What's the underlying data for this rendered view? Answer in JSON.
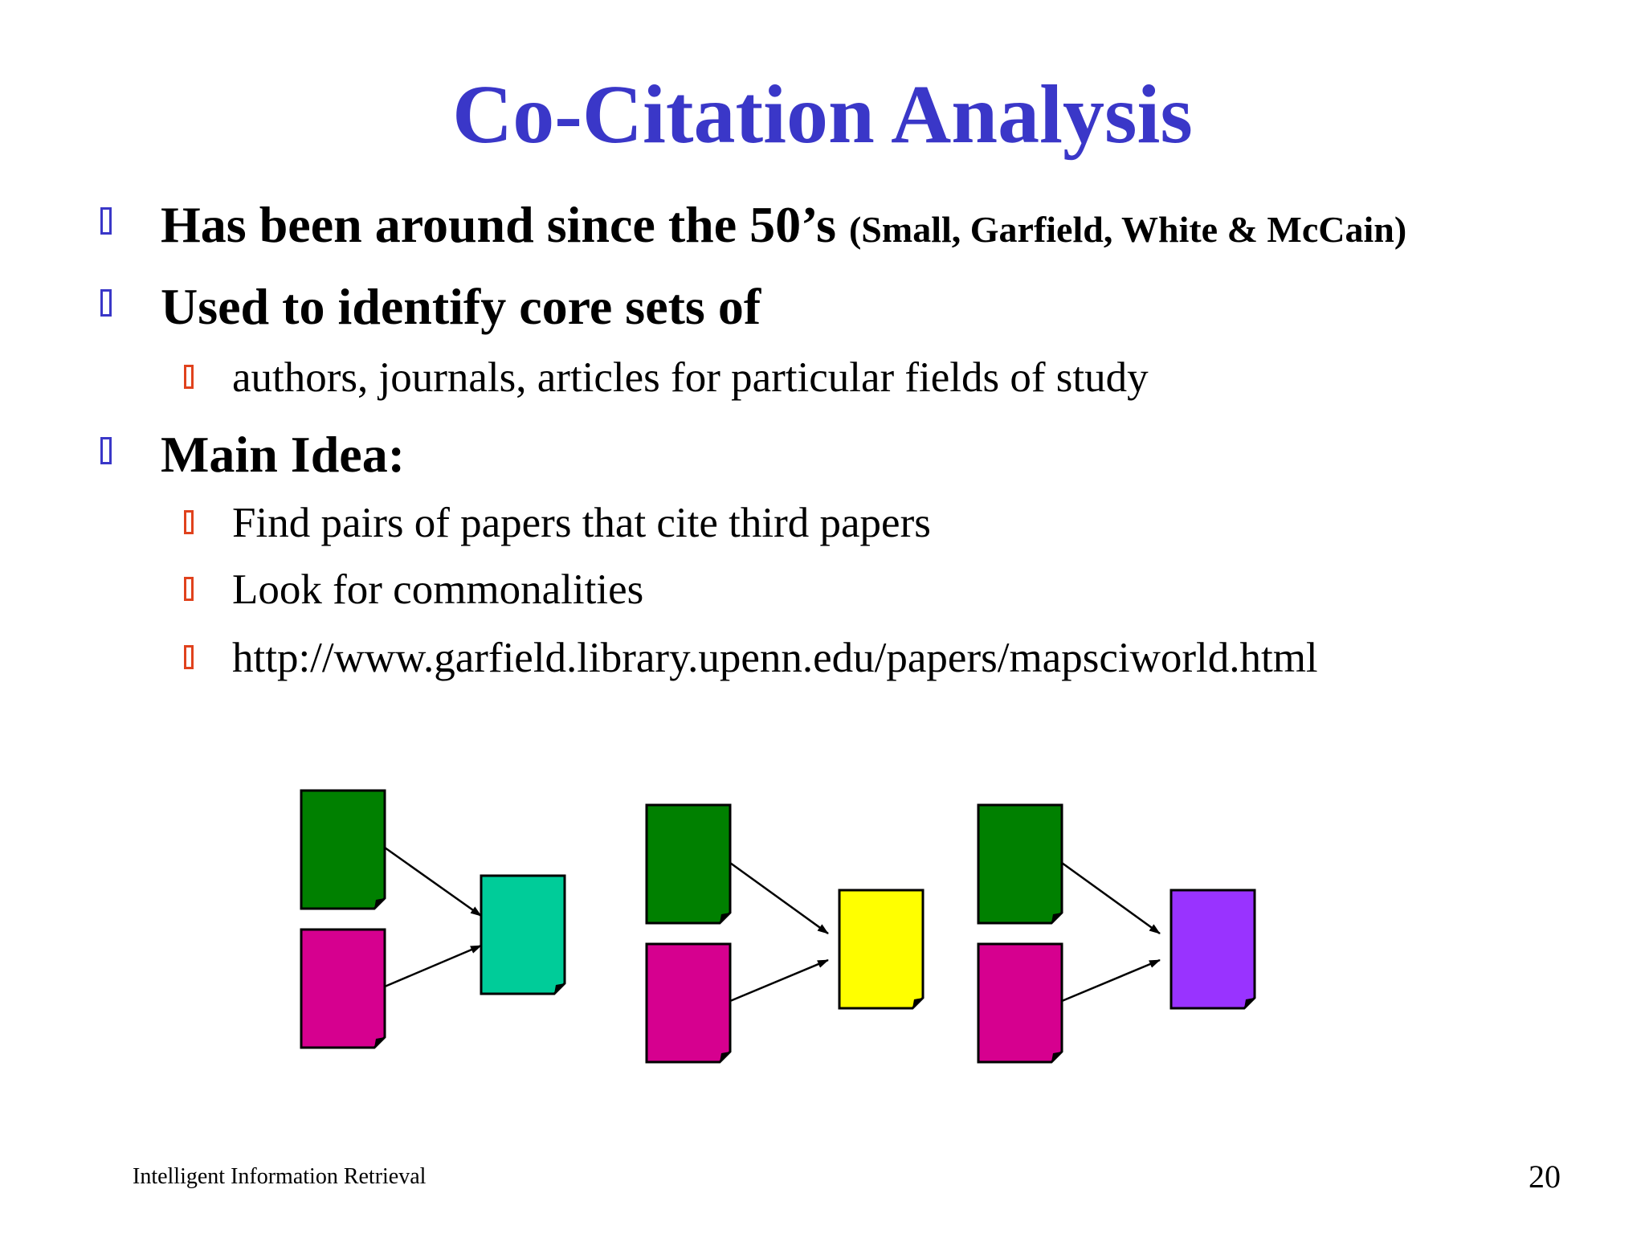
{
  "slide": {
    "title": "Co-Citation Analysis",
    "bullets": [
      {
        "text": "Has been around since the 50’s",
        "note": "(Small, Garfield, White & McCain)"
      },
      {
        "text": "Used to identify core sets of"
      },
      {
        "text": "authors, journals, articles for particular fields of study"
      },
      {
        "text": "Main Idea:"
      },
      {
        "text": "Find pairs of papers that cite third papers"
      },
      {
        "text": "Look for commonalities"
      },
      {
        "text": "http://www.garfield.library.upenn.edu/papers/mapsciworld.html"
      }
    ],
    "footer": "Intelligent Information Retrieval",
    "page_number": "20"
  },
  "colors": {
    "title": "#3a37c8",
    "level1_marker": "#3a37c8",
    "level2_marker": "#e0421d",
    "citing_top": "#008000",
    "citing_bottom": "#d6008f",
    "cited_1": "#00cc99",
    "cited_2": "#ffff00",
    "cited_3": "#9933ff"
  },
  "diagram": {
    "groups": [
      {
        "cited_color": "#00cc99"
      },
      {
        "cited_color": "#ffff00"
      },
      {
        "cited_color": "#9933ff"
      }
    ]
  }
}
